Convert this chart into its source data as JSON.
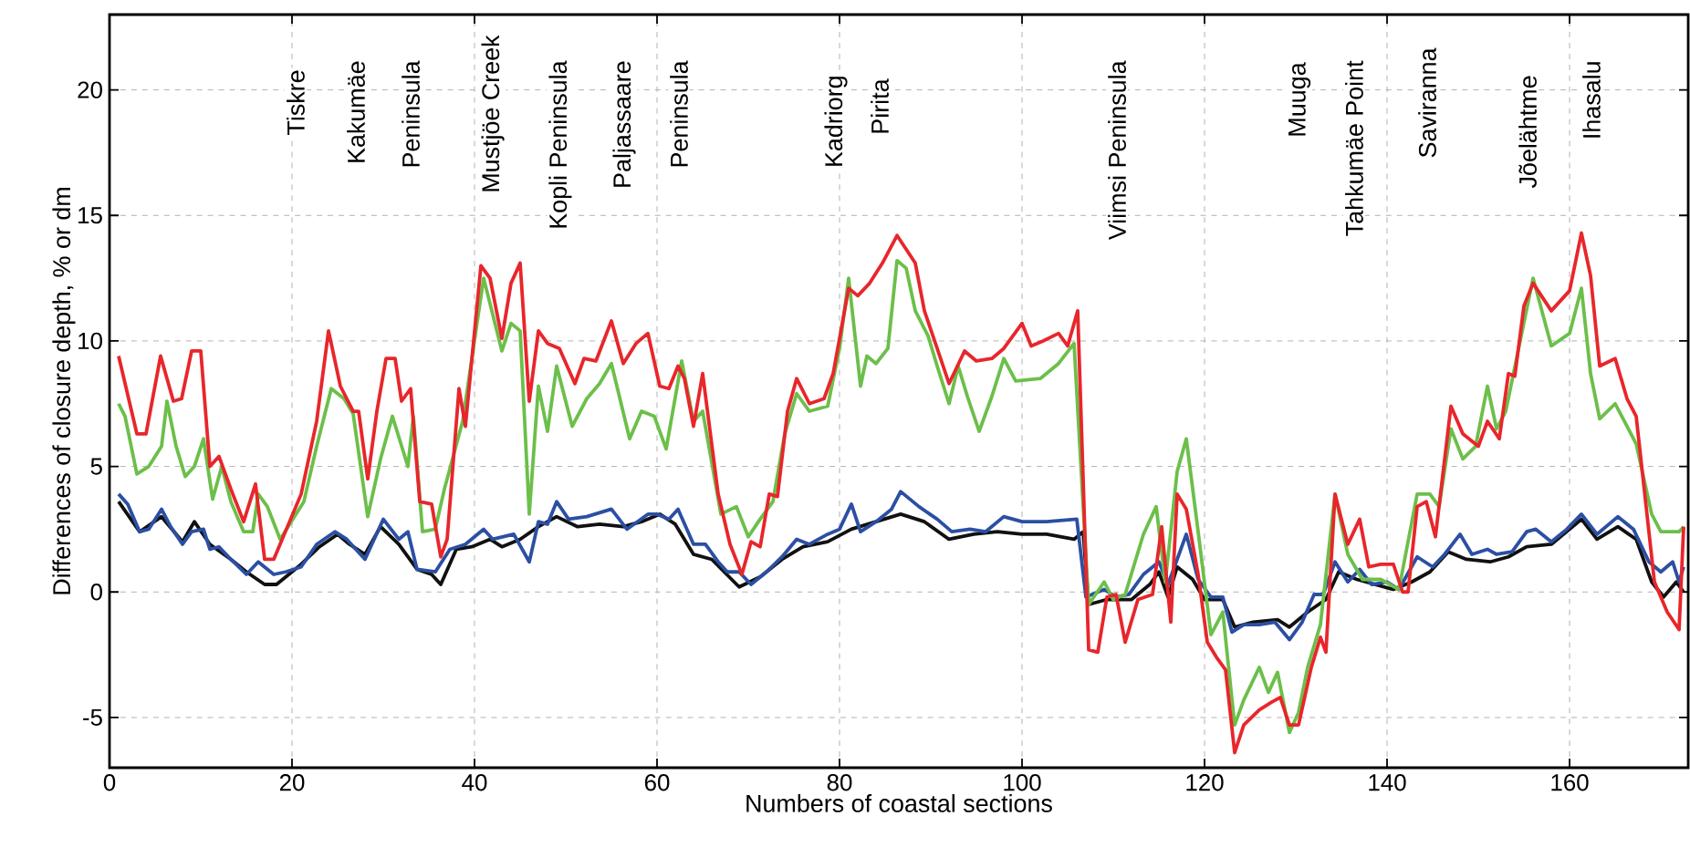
{
  "chart_data": {
    "type": "line",
    "xlabel": "Numbers of coastal sections",
    "ylabel": "Differences of closure depth, % or dm",
    "xlim": [
      0,
      173
    ],
    "ylim": [
      -7,
      23
    ],
    "xticks": [
      0,
      20,
      40,
      60,
      80,
      100,
      120,
      140,
      160
    ],
    "yticks": [
      -5,
      0,
      5,
      10,
      15,
      20
    ],
    "grid": true,
    "marker": "none",
    "line_style": "solid",
    "annotations": [
      "Tiskre",
      "Kakumäe",
      "Peninsula",
      "Mustjöe Creek",
      "Kopli Peninsula",
      "Paljassaare",
      "Peninsula",
      "Kadriorg",
      "Pirita",
      "Viimsi Peninsula",
      "Muuga",
      "Tahkumäe Point",
      "Saviranna",
      "Jõelähtme",
      "Ihasalu"
    ],
    "series": [
      {
        "color": "#111111",
        "x": [
          1,
          3.3,
          5.7,
          8,
          9.3,
          11,
          13.3,
          15,
          17,
          18.3,
          21,
          23,
          25,
          26.3,
          28,
          29.7,
          31.7,
          33.7,
          35.3,
          36.3,
          38,
          39.7,
          41.7,
          43,
          45,
          47,
          49,
          51.3,
          53.7,
          56.3,
          58.3,
          60.3,
          62,
          64,
          66,
          69,
          71.3,
          73.7,
          76,
          78.7,
          81.3,
          84,
          86.7,
          89.3,
          92,
          94.7,
          97.3,
          100,
          102.7,
          105.7,
          106.7,
          107.3,
          109.3,
          112,
          114,
          115,
          116,
          117,
          118.7,
          120,
          122,
          123.3,
          125.3,
          128,
          129.3,
          131.3,
          133.3,
          134.7,
          136.7,
          138.7,
          140.7,
          142.7,
          144.7,
          146.7,
          148.7,
          151.3,
          153.3,
          155.3,
          158,
          161.3,
          163,
          165.3,
          167.3,
          169,
          170.3,
          171.7,
          172.5
        ],
        "values": [
          3.6,
          2.4,
          3.0,
          2.0,
          2.8,
          1.9,
          1.3,
          0.8,
          0.3,
          0.3,
          1.1,
          1.8,
          2.3,
          1.9,
          1.5,
          2.6,
          1.9,
          0.9,
          0.7,
          0.3,
          1.7,
          1.8,
          2.1,
          1.8,
          2.1,
          2.6,
          3.0,
          2.6,
          2.7,
          2.6,
          2.8,
          3.1,
          2.7,
          1.5,
          1.3,
          0.2,
          0.6,
          1.3,
          1.8,
          2.0,
          2.5,
          2.8,
          3.1,
          2.8,
          2.1,
          2.3,
          2.4,
          2.3,
          2.3,
          2.1,
          2.4,
          -0.5,
          -0.3,
          -0.3,
          0.3,
          0.8,
          -0.2,
          1.0,
          0.5,
          -0.3,
          -0.3,
          -1.4,
          -1.2,
          -1.1,
          -1.4,
          -0.8,
          -0.3,
          0.8,
          0.5,
          0.3,
          0.1,
          0.4,
          0.8,
          1.6,
          1.3,
          1.2,
          1.4,
          1.8,
          1.9,
          2.9,
          2.1,
          2.6,
          2.1,
          0.4,
          -0.2,
          0.4,
          0.0
        ]
      },
      {
        "color": "#2b4fa3",
        "x": [
          1,
          2,
          3.3,
          4.3,
          5.7,
          6.7,
          8,
          9,
          10.3,
          11,
          12,
          13.3,
          15,
          16.3,
          18,
          19.3,
          21,
          22.7,
          24.7,
          26,
          28,
          30,
          31.7,
          32.7,
          33.7,
          35.7,
          37.3,
          39,
          41,
          42,
          44.3,
          46,
          47,
          48,
          49,
          50.3,
          52.3,
          55,
          56.7,
          59,
          60,
          61.3,
          62.3,
          64,
          65.3,
          66.7,
          67.7,
          69,
          70.3,
          72,
          73.7,
          75.3,
          76.7,
          78.7,
          80,
          81.3,
          82.3,
          84,
          85.7,
          86.7,
          88.7,
          90.7,
          92.3,
          94.3,
          96,
          98,
          100,
          102.7,
          106,
          107,
          109,
          110.3,
          111.7,
          113.3,
          115,
          116,
          118,
          119.3,
          120.7,
          122,
          123,
          124.3,
          126,
          127.7,
          129.3,
          130.7,
          132,
          133,
          134.3,
          135.7,
          137,
          138.3,
          140,
          141.3,
          143.3,
          145,
          146.3,
          148,
          149.3,
          151,
          152,
          153.7,
          155.3,
          156.3,
          158,
          159.7,
          161.3,
          163,
          165.3,
          167,
          168.7,
          170,
          171.3,
          172,
          172.5
        ],
        "values": [
          3.9,
          3.5,
          2.4,
          2.5,
          3.3,
          2.6,
          1.9,
          2.4,
          2.5,
          1.7,
          1.8,
          1.3,
          0.7,
          1.2,
          0.7,
          0.8,
          1.0,
          1.9,
          2.4,
          2.1,
          1.3,
          2.9,
          2.1,
          2.4,
          0.9,
          0.8,
          1.7,
          1.9,
          2.5,
          2.1,
          2.3,
          1.2,
          2.8,
          2.7,
          3.6,
          2.9,
          3.0,
          3.3,
          2.5,
          3.1,
          3.1,
          2.9,
          3.3,
          1.9,
          1.9,
          1.2,
          0.8,
          0.8,
          0.3,
          0.8,
          1.4,
          2.1,
          1.9,
          2.3,
          2.5,
          3.5,
          2.4,
          2.8,
          3.3,
          4.0,
          3.4,
          2.9,
          2.4,
          2.5,
          2.4,
          3.0,
          2.8,
          2.8,
          2.9,
          -0.2,
          0.1,
          -0.2,
          -0.1,
          0.7,
          1.2,
          0.3,
          2.3,
          0.5,
          -0.2,
          -0.2,
          -1.6,
          -1.3,
          -1.3,
          -1.2,
          -1.9,
          -1.2,
          -0.1,
          -0.1,
          1.2,
          0.4,
          0.9,
          0.3,
          0.4,
          0.1,
          1.4,
          1.0,
          1.5,
          2.3,
          1.5,
          1.7,
          1.5,
          1.6,
          2.4,
          2.5,
          2.0,
          2.5,
          3.1,
          2.3,
          3.0,
          2.5,
          1.2,
          0.8,
          1.2,
          0.4,
          1.0
        ]
      },
      {
        "color": "#6cbf4a",
        "x": [
          1,
          1.7,
          3,
          4.3,
          5.7,
          6.3,
          7.3,
          8.3,
          9.3,
          10.3,
          11.3,
          12.3,
          13.3,
          14.7,
          15.7,
          16.3,
          17.3,
          18.7,
          21.3,
          22.7,
          24.3,
          25.7,
          26.7,
          28.3,
          29.7,
          31,
          32.7,
          33.3,
          34.3,
          35.7,
          36.7,
          38.7,
          41,
          43,
          44,
          45,
          46,
          47,
          48,
          49,
          50.7,
          52.3,
          53.7,
          55,
          57,
          58.3,
          59.7,
          61,
          62.7,
          64,
          65,
          67,
          68.7,
          70,
          71.3,
          72.7,
          74,
          75.3,
          76.7,
          78.7,
          80,
          81,
          82.3,
          83,
          84,
          85.3,
          86.3,
          87.3,
          88.3,
          89.7,
          90.7,
          92,
          93,
          94,
          95.3,
          96.7,
          98,
          99.3,
          102,
          104,
          105.7,
          107.3,
          109,
          110,
          111.3,
          113.3,
          114.7,
          115.7,
          117,
          118,
          119.3,
          120.7,
          122,
          123.3,
          124.3,
          126,
          127,
          128,
          129.3,
          130.3,
          131.3,
          132.7,
          134.3,
          135.7,
          137.3,
          139.3,
          141.3,
          143.3,
          144.7,
          145.7,
          147,
          148.3,
          149.7,
          151,
          152,
          153,
          154.7,
          156,
          158,
          160,
          161.3,
          162.3,
          163.3,
          165,
          166.3,
          167.3,
          169,
          170,
          172,
          172.5
        ],
        "values": [
          7.5,
          7.0,
          4.7,
          5.0,
          5.8,
          7.6,
          5.8,
          4.6,
          5.0,
          6.1,
          3.7,
          5.0,
          3.6,
          2.4,
          2.4,
          3.9,
          3.4,
          2.1,
          3.6,
          5.8,
          8.1,
          7.7,
          7.1,
          3.0,
          5.3,
          7.0,
          5.0,
          7.0,
          2.4,
          2.5,
          4.1,
          6.8,
          12.5,
          9.6,
          10.7,
          10.4,
          3.1,
          8.2,
          6.4,
          9.0,
          6.6,
          7.7,
          8.3,
          9.1,
          6.1,
          7.2,
          7.0,
          5.7,
          9.2,
          6.8,
          7.2,
          3.1,
          3.4,
          2.2,
          2.9,
          3.6,
          6.3,
          7.9,
          7.2,
          7.4,
          9.7,
          12.5,
          8.2,
          9.4,
          9.1,
          9.7,
          13.2,
          12.9,
          11.2,
          10.2,
          9.0,
          7.5,
          9.0,
          7.8,
          6.4,
          7.8,
          9.3,
          8.4,
          8.5,
          9.1,
          9.9,
          -0.5,
          0.4,
          -0.3,
          -0.1,
          2.3,
          3.4,
          0.4,
          4.8,
          6.1,
          2.4,
          -1.7,
          -0.8,
          -5.3,
          -4.3,
          -3.0,
          -4.0,
          -3.2,
          -5.6,
          -4.8,
          -3.0,
          -1.3,
          3.9,
          1.5,
          0.5,
          0.5,
          0.1,
          3.9,
          3.9,
          3.4,
          6.5,
          5.3,
          5.8,
          8.2,
          6.5,
          7.2,
          10.2,
          12.5,
          9.8,
          10.3,
          12.1,
          8.7,
          6.9,
          7.5,
          6.6,
          5.9,
          3.1,
          2.4,
          2.4,
          2.6
        ]
      },
      {
        "color": "#e8262b",
        "x": [
          1,
          3,
          4,
          5.6,
          7,
          7.9,
          9,
          10,
          11,
          12,
          13.3,
          14.7,
          16,
          17,
          18,
          21,
          22.7,
          24,
          25.3,
          26.7,
          27.3,
          28.3,
          29.3,
          30.3,
          31.3,
          32,
          33,
          34,
          35.3,
          36.3,
          37,
          38.3,
          39,
          40.7,
          41.7,
          43,
          44,
          45,
          46,
          47,
          48,
          49.3,
          51,
          52,
          53.3,
          55,
          56.3,
          57.7,
          59,
          60.3,
          61.3,
          62.3,
          63,
          64,
          65,
          66.7,
          68,
          69.3,
          70.3,
          71.3,
          72.3,
          73.2,
          74.3,
          75.3,
          76.7,
          78.3,
          79.3,
          81,
          82,
          83.3,
          84.7,
          86.3,
          88.3,
          89.3,
          90.7,
          92,
          93.7,
          95,
          96.7,
          98,
          100,
          101,
          102.3,
          104,
          105,
          106.1,
          107.3,
          108.3,
          109.3,
          110.3,
          111.3,
          112.7,
          114.3,
          115.3,
          116.3,
          117,
          118,
          119.3,
          120.3,
          121.3,
          122.3,
          123.3,
          124.3,
          126,
          127.3,
          128.3,
          129.3,
          130.3,
          131.7,
          132.7,
          133.3,
          134.3,
          135.7,
          137,
          138,
          139.3,
          140.7,
          141.7,
          142.3,
          143.3,
          144.3,
          145.3,
          147,
          148.3,
          150,
          151,
          152.3,
          153.3,
          154,
          155,
          156,
          158,
          160,
          161.3,
          162.3,
          163.3,
          165,
          166.3,
          167.3,
          169.3,
          170.7,
          172,
          172.5
        ],
        "values": [
          9.4,
          6.3,
          6.3,
          9.4,
          7.6,
          7.7,
          9.6,
          9.6,
          5.0,
          5.4,
          4.1,
          2.8,
          4.3,
          1.3,
          1.3,
          3.9,
          6.8,
          10.4,
          8.2,
          7.2,
          7.2,
          4.5,
          7.2,
          9.3,
          9.3,
          7.6,
          8.1,
          3.6,
          3.5,
          1.4,
          2.1,
          8.1,
          6.6,
          13.0,
          12.5,
          10.1,
          12.3,
          13.1,
          7.6,
          10.4,
          9.9,
          9.7,
          8.3,
          9.3,
          9.2,
          10.8,
          9.1,
          9.9,
          10.3,
          8.2,
          8.1,
          9.0,
          8.5,
          6.6,
          8.7,
          3.9,
          1.9,
          0.7,
          2.0,
          1.8,
          3.9,
          3.8,
          7.2,
          8.5,
          7.5,
          7.7,
          8.7,
          12.1,
          11.8,
          12.3,
          13.1,
          14.2,
          13.1,
          11.2,
          9.7,
          8.3,
          9.6,
          9.2,
          9.3,
          9.7,
          10.7,
          9.8,
          10.0,
          10.3,
          9.8,
          11.2,
          -2.3,
          -2.4,
          -0.2,
          -0.1,
          -2.0,
          -0.3,
          -0.1,
          2.6,
          -1.2,
          3.9,
          3.3,
          0.7,
          -2.0,
          -2.6,
          -3.1,
          -6.4,
          -5.3,
          -4.7,
          -4.4,
          -4.2,
          -5.3,
          -5.3,
          -3.0,
          -1.8,
          -2.4,
          3.9,
          1.9,
          2.9,
          1.0,
          1.1,
          1.1,
          0.0,
          0.0,
          3.4,
          3.6,
          2.2,
          7.4,
          6.3,
          5.8,
          6.8,
          6.1,
          8.7,
          8.6,
          11.4,
          12.3,
          11.2,
          12.0,
          14.3,
          12.6,
          9.0,
          9.3,
          7.7,
          7.0,
          0.4,
          -0.8,
          -1.5,
          2.6
        ]
      }
    ]
  }
}
